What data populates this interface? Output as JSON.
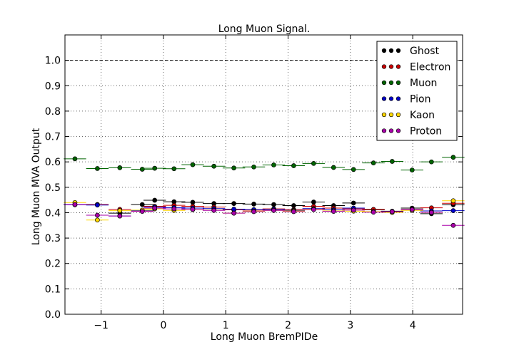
{
  "chart_data": {
    "type": "scatter",
    "title": "Long Muon Signal.",
    "xlabel": "Long Muon BremPIDe",
    "ylabel": "Long Muon MVA Output",
    "xlim": [
      -1.58,
      4.8
    ],
    "ylim": [
      0.0,
      1.1
    ],
    "xticks": [
      -1,
      0,
      1,
      2,
      3,
      4
    ],
    "xtick_labels": [
      "−1",
      "0",
      "1",
      "2",
      "3",
      "4"
    ],
    "yticks": [
      0.0,
      0.1,
      0.2,
      0.3,
      0.4,
      0.5,
      0.6,
      0.7,
      0.8,
      0.9,
      1.0
    ],
    "ytick_labels": [
      "0.0",
      "0.1",
      "0.2",
      "0.3",
      "0.4",
      "0.5",
      "0.6",
      "0.7",
      "0.8",
      "0.9",
      "1.0"
    ],
    "grid": true,
    "legend_position": "top-right",
    "reference_line": 1.0,
    "bin_half_width": 0.18,
    "x": [
      -1.42,
      -1.06,
      -0.7,
      -0.34,
      -0.14,
      0.17,
      0.47,
      0.81,
      1.13,
      1.45,
      1.77,
      2.09,
      2.41,
      2.73,
      3.05,
      3.37,
      3.67,
      3.99,
      4.3,
      4.65
    ],
    "series": [
      {
        "name": "Ghost",
        "color": "#000000",
        "values": [
          0.432,
          0.432,
          0.398,
          0.432,
          0.449,
          0.443,
          0.441,
          0.436,
          0.436,
          0.434,
          0.432,
          0.428,
          0.442,
          0.428,
          0.438,
          0.411,
          0.406,
          0.418,
          0.396,
          0.431
        ]
      },
      {
        "name": "Electron",
        "color": "#cc0000",
        "values": [
          0.432,
          0.432,
          0.413,
          0.406,
          0.425,
          0.429,
          0.425,
          0.422,
          0.411,
          0.41,
          0.415,
          0.412,
          0.425,
          0.418,
          0.415,
          0.413,
          0.404,
          0.413,
          0.419,
          0.437
        ]
      },
      {
        "name": "Muon",
        "color": "#006400",
        "values": [
          0.612,
          0.574,
          0.577,
          0.571,
          0.575,
          0.573,
          0.589,
          0.583,
          0.576,
          0.58,
          0.588,
          0.585,
          0.594,
          0.578,
          0.57,
          0.596,
          0.602,
          0.568,
          0.6,
          0.618
        ]
      },
      {
        "name": "Pion",
        "color": "#0000cc",
        "values": [
          0.431,
          0.43,
          0.387,
          0.408,
          0.422,
          0.42,
          0.418,
          0.416,
          0.414,
          0.412,
          0.413,
          0.409,
          0.416,
          0.411,
          0.418,
          0.404,
          0.402,
          0.411,
          0.407,
          0.408
        ]
      },
      {
        "name": "Kaon",
        "color": "#ffd700",
        "values": [
          0.44,
          0.371,
          0.408,
          0.41,
          0.415,
          0.409,
          0.412,
          0.41,
          0.398,
          0.406,
          0.409,
          0.407,
          0.414,
          0.407,
          0.406,
          0.404,
          0.401,
          0.409,
          0.401,
          0.447
        ]
      },
      {
        "name": "Proton",
        "color": "#aa00aa",
        "values": [
          0.432,
          0.39,
          0.387,
          0.405,
          0.418,
          0.415,
          0.413,
          0.409,
          0.398,
          0.404,
          0.409,
          0.404,
          0.412,
          0.405,
          0.41,
          0.402,
          0.404,
          0.412,
          0.401,
          0.35
        ]
      }
    ]
  }
}
